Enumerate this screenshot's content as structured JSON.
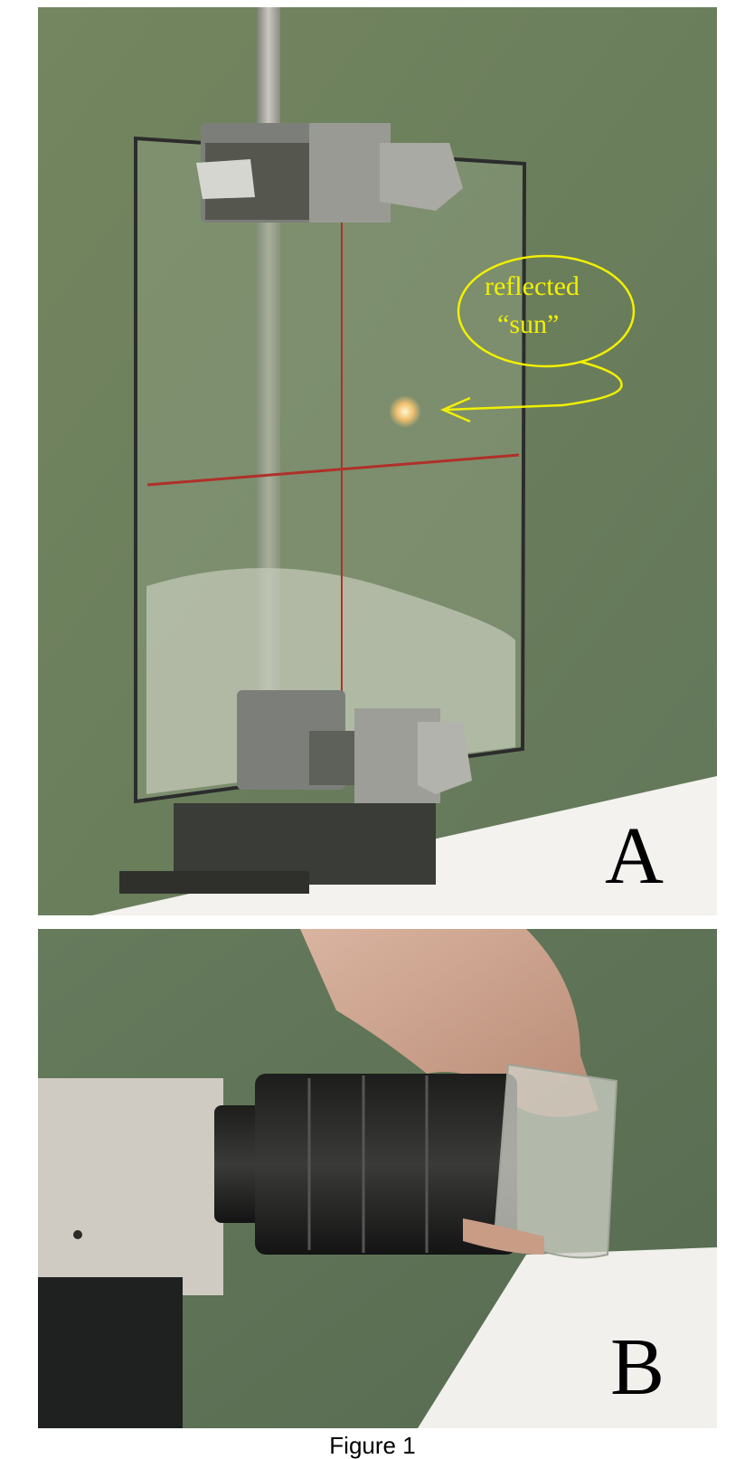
{
  "figure": {
    "panel_a": {
      "label": "A",
      "callout_line1": "reflected",
      "callout_line2": "“sun”",
      "callout_color": "#f2f000",
      "crosshair_color": "#b0302a"
    },
    "panel_b": {
      "label": "B"
    },
    "caption": "Figure 1"
  }
}
